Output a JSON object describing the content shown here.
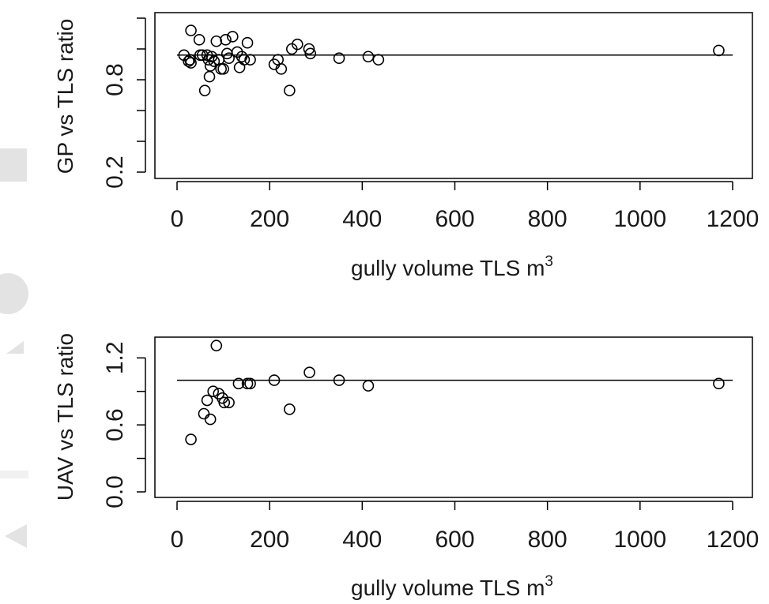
{
  "chart_data": [
    {
      "type": "scatter",
      "xlabel": "gully volume TLS m",
      "xlabel_superscript": "3",
      "ylabel": "GP vs TLS ratio",
      "xlim": [
        0,
        1200
      ],
      "ylim": [
        0.2,
        1.2
      ],
      "x_ticks": [
        0,
        200,
        400,
        600,
        800,
        1000,
        1200
      ],
      "y_ticks": [
        0.2,
        0.4,
        0.6,
        0.8,
        1.0,
        1.2
      ],
      "y_tick_labels": [
        "0.2",
        "",
        "",
        "0.8",
        "",
        ""
      ],
      "reference_line_y": 0.96,
      "grid": false,
      "series": [
        {
          "points": [
            {
              "x": 15,
              "y": 0.96
            },
            {
              "x": 25,
              "y": 0.92
            },
            {
              "x": 28,
              "y": 0.93
            },
            {
              "x": 30,
              "y": 0.91
            },
            {
              "x": 30,
              "y": 1.12
            },
            {
              "x": 48,
              "y": 1.06
            },
            {
              "x": 50,
              "y": 0.96
            },
            {
              "x": 55,
              "y": 0.96
            },
            {
              "x": 60,
              "y": 0.73
            },
            {
              "x": 65,
              "y": 0.96
            },
            {
              "x": 68,
              "y": 0.93
            },
            {
              "x": 70,
              "y": 0.82
            },
            {
              "x": 72,
              "y": 0.89
            },
            {
              "x": 75,
              "y": 0.95
            },
            {
              "x": 80,
              "y": 0.92
            },
            {
              "x": 85,
              "y": 1.05
            },
            {
              "x": 90,
              "y": 0.93
            },
            {
              "x": 95,
              "y": 0.87
            },
            {
              "x": 100,
              "y": 0.87
            },
            {
              "x": 105,
              "y": 1.06
            },
            {
              "x": 108,
              "y": 0.97
            },
            {
              "x": 112,
              "y": 0.94
            },
            {
              "x": 120,
              "y": 1.08
            },
            {
              "x": 130,
              "y": 0.98
            },
            {
              "x": 135,
              "y": 0.88
            },
            {
              "x": 140,
              "y": 0.95
            },
            {
              "x": 145,
              "y": 0.93
            },
            {
              "x": 152,
              "y": 1.04
            },
            {
              "x": 158,
              "y": 0.93
            },
            {
              "x": 210,
              "y": 0.9
            },
            {
              "x": 218,
              "y": 0.93
            },
            {
              "x": 225,
              "y": 0.87
            },
            {
              "x": 243,
              "y": 0.73
            },
            {
              "x": 248,
              "y": 1.0
            },
            {
              "x": 260,
              "y": 1.03
            },
            {
              "x": 285,
              "y": 1.0
            },
            {
              "x": 288,
              "y": 0.97
            },
            {
              "x": 350,
              "y": 0.94
            },
            {
              "x": 413,
              "y": 0.95
            },
            {
              "x": 435,
              "y": 0.93
            },
            {
              "x": 1170,
              "y": 0.99
            }
          ]
        }
      ]
    },
    {
      "type": "scatter",
      "xlabel": "gully volume TLS m",
      "xlabel_superscript": "3",
      "ylabel": "UAV vs TLS ratio",
      "xlim": [
        0,
        1200
      ],
      "ylim": [
        0.0,
        1.4
      ],
      "x_ticks": [
        0,
        200,
        400,
        600,
        800,
        1000,
        1200
      ],
      "y_ticks": [
        0.0,
        0.3,
        0.6,
        0.9,
        1.2
      ],
      "y_tick_labels": [
        "0.0",
        "",
        "0.6",
        "",
        "1.2"
      ],
      "reference_line_y": 1.0,
      "grid": false,
      "series": [
        {
          "points": [
            {
              "x": 30,
              "y": 0.47
            },
            {
              "x": 58,
              "y": 0.7
            },
            {
              "x": 65,
              "y": 0.82
            },
            {
              "x": 72,
              "y": 0.65
            },
            {
              "x": 78,
              "y": 0.9
            },
            {
              "x": 85,
              "y": 1.31
            },
            {
              "x": 90,
              "y": 0.88
            },
            {
              "x": 98,
              "y": 0.84
            },
            {
              "x": 102,
              "y": 0.8
            },
            {
              "x": 112,
              "y": 0.8
            },
            {
              "x": 133,
              "y": 0.97
            },
            {
              "x": 152,
              "y": 0.97
            },
            {
              "x": 158,
              "y": 0.97
            },
            {
              "x": 210,
              "y": 1.0
            },
            {
              "x": 243,
              "y": 0.74
            },
            {
              "x": 286,
              "y": 1.07
            },
            {
              "x": 350,
              "y": 1.0
            },
            {
              "x": 413,
              "y": 0.95
            },
            {
              "x": 1170,
              "y": 0.97
            }
          ]
        }
      ]
    }
  ]
}
